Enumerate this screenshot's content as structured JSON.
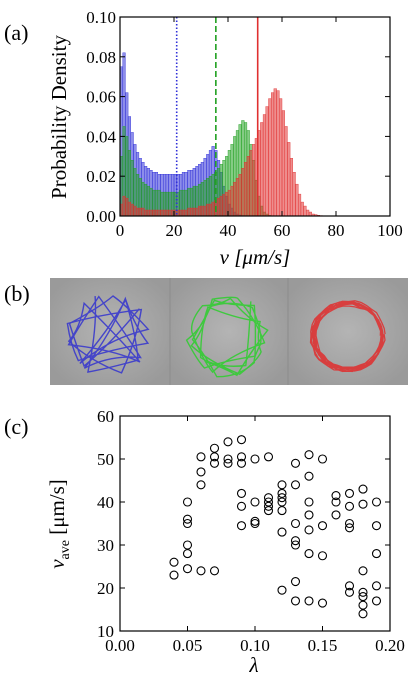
{
  "panels": {
    "a": {
      "label": "(a)"
    },
    "b": {
      "label": "(b)"
    },
    "c": {
      "label": "(c)"
    }
  },
  "colors": {
    "blue": "#3030d8",
    "green": "#20a020",
    "red": "#e03030",
    "frame_bg": "#a8a8a8",
    "trajectory_blue": "#3a3acc",
    "trajectory_green": "#33cc33",
    "trajectory_red": "#dd3333"
  },
  "chart_data": [
    {
      "panel": "(a)",
      "type": "bar",
      "xlabel": "v [μm/s]",
      "ylabel": "Probability Density",
      "xlim": [
        0,
        100
      ],
      "ylim": [
        0,
        0.1
      ],
      "xticks": [
        "0",
        "20",
        "40",
        "60",
        "80",
        "100"
      ],
      "yticks": [
        "0.00",
        "0.02",
        "0.04",
        "0.06",
        "0.08",
        "0.10"
      ],
      "series": [
        {
          "color": "blue",
          "x": [
            0.5,
            1.5,
            2.5,
            3.5,
            4.5,
            5.5,
            6.5,
            7.5,
            8.5,
            9.5,
            10.5,
            11.5,
            12.5,
            13.5,
            14.5,
            15.5,
            16.5,
            17.5,
            18.5,
            19.5,
            20.5,
            21.5,
            22.5,
            23.5,
            24.5,
            25.5,
            26.5,
            27.5,
            28.5,
            29.5,
            30.5,
            31.5,
            32.5,
            33.5,
            34.5,
            35.5,
            36.5,
            37.5,
            38.5,
            39.5,
            40.5,
            41.5,
            42.5,
            43.5,
            44.5,
            45.5
          ],
          "values": [
            0.075,
            0.082,
            0.062,
            0.05,
            0.042,
            0.036,
            0.032,
            0.029,
            0.027,
            0.025,
            0.024,
            0.023,
            0.022,
            0.022,
            0.021,
            0.021,
            0.021,
            0.021,
            0.021,
            0.021,
            0.021,
            0.021,
            0.021,
            0.022,
            0.022,
            0.023,
            0.023,
            0.024,
            0.025,
            0.026,
            0.027,
            0.029,
            0.031,
            0.033,
            0.035,
            0.033,
            0.028,
            0.022,
            0.015,
            0.01,
            0.006,
            0.004,
            0.002,
            0.001,
            0.0005,
            0.0002
          ]
        },
        {
          "color": "green",
          "x": [
            0.5,
            1.5,
            2.5,
            3.5,
            4.5,
            5.5,
            6.5,
            7.5,
            8.5,
            9.5,
            10.5,
            11.5,
            12.5,
            13.5,
            14.5,
            15.5,
            16.5,
            17.5,
            18.5,
            19.5,
            20.5,
            21.5,
            22.5,
            23.5,
            24.5,
            25.5,
            26.5,
            27.5,
            28.5,
            29.5,
            30.5,
            31.5,
            32.5,
            33.5,
            34.5,
            35.5,
            36.5,
            37.5,
            38.5,
            39.5,
            40.5,
            41.5,
            42.5,
            43.5,
            44.5,
            45.5,
            46.5,
            47.5,
            48.5,
            49.5,
            50.5,
            51.5,
            52.5,
            53.5,
            54.5,
            55.5
          ],
          "values": [
            0.03,
            0.045,
            0.04,
            0.033,
            0.028,
            0.024,
            0.021,
            0.019,
            0.017,
            0.016,
            0.015,
            0.014,
            0.013,
            0.013,
            0.013,
            0.012,
            0.012,
            0.012,
            0.012,
            0.012,
            0.012,
            0.012,
            0.013,
            0.013,
            0.013,
            0.014,
            0.014,
            0.015,
            0.015,
            0.016,
            0.017,
            0.018,
            0.019,
            0.02,
            0.021,
            0.022,
            0.024,
            0.026,
            0.028,
            0.03,
            0.033,
            0.036,
            0.04,
            0.043,
            0.046,
            0.048,
            0.047,
            0.043,
            0.036,
            0.028,
            0.018,
            0.01,
            0.005,
            0.002,
            0.001,
            0.0003
          ]
        },
        {
          "color": "red",
          "x": [
            0.5,
            1.5,
            2.5,
            3.5,
            4.5,
            5.5,
            6.5,
            7.5,
            8.5,
            9.5,
            10.5,
            11.5,
            12.5,
            13.5,
            14.5,
            15.5,
            16.5,
            17.5,
            18.5,
            19.5,
            20.5,
            21.5,
            22.5,
            23.5,
            24.5,
            25.5,
            26.5,
            27.5,
            28.5,
            29.5,
            30.5,
            31.5,
            32.5,
            33.5,
            34.5,
            35.5,
            36.5,
            37.5,
            38.5,
            39.5,
            40.5,
            41.5,
            42.5,
            43.5,
            44.5,
            45.5,
            46.5,
            47.5,
            48.5,
            49.5,
            50.5,
            51.5,
            52.5,
            53.5,
            54.5,
            55.5,
            56.5,
            57.5,
            58.5,
            59.5,
            60.5,
            61.5,
            62.5,
            63.5,
            64.5,
            65.5,
            66.5,
            67.5,
            68.5,
            69.5,
            70.5,
            71.5,
            72.5,
            73.5,
            74.5,
            75.5
          ],
          "values": [
            0.006,
            0.01,
            0.009,
            0.007,
            0.006,
            0.005,
            0.004,
            0.004,
            0.004,
            0.003,
            0.003,
            0.003,
            0.003,
            0.003,
            0.003,
            0.003,
            0.003,
            0.003,
            0.003,
            0.003,
            0.003,
            0.003,
            0.003,
            0.003,
            0.003,
            0.004,
            0.004,
            0.004,
            0.004,
            0.005,
            0.005,
            0.005,
            0.006,
            0.006,
            0.007,
            0.008,
            0.009,
            0.01,
            0.011,
            0.012,
            0.013,
            0.015,
            0.017,
            0.019,
            0.021,
            0.024,
            0.027,
            0.03,
            0.033,
            0.036,
            0.039,
            0.043,
            0.047,
            0.051,
            0.055,
            0.059,
            0.062,
            0.064,
            0.063,
            0.059,
            0.053,
            0.045,
            0.037,
            0.029,
            0.022,
            0.016,
            0.011,
            0.007,
            0.005,
            0.003,
            0.002,
            0.001,
            0.0007,
            0.0004,
            0.0002,
            0.0001
          ]
        }
      ],
      "vertical_lines": [
        {
          "x": 21,
          "color": "blue",
          "style": "dotted"
        },
        {
          "x": 35.5,
          "color": "green",
          "style": "dashed"
        },
        {
          "x": 51,
          "color": "red",
          "style": "solid"
        }
      ]
    },
    {
      "panel": "(c)",
      "type": "scatter",
      "xlabel": "λ",
      "ylabel": "v_ave [μm/s]",
      "xlim": [
        0,
        0.2
      ],
      "ylim": [
        10,
        60
      ],
      "xticks": [
        "0.00",
        "0.05",
        "0.10",
        "0.15",
        "0.20"
      ],
      "yticks": [
        "10",
        "20",
        "30",
        "40",
        "50",
        "60"
      ],
      "marker": "open-circle",
      "points": [
        [
          0.04,
          26
        ],
        [
          0.04,
          23
        ],
        [
          0.05,
          24.5
        ],
        [
          0.05,
          28
        ],
        [
          0.05,
          30
        ],
        [
          0.05,
          35
        ],
        [
          0.05,
          36
        ],
        [
          0.05,
          40
        ],
        [
          0.06,
          24
        ],
        [
          0.06,
          44
        ],
        [
          0.06,
          47
        ],
        [
          0.06,
          50.5
        ],
        [
          0.07,
          24
        ],
        [
          0.07,
          49
        ],
        [
          0.07,
          50.5
        ],
        [
          0.07,
          52.5
        ],
        [
          0.08,
          49
        ],
        [
          0.08,
          50
        ],
        [
          0.08,
          54
        ],
        [
          0.09,
          34.5
        ],
        [
          0.09,
          39
        ],
        [
          0.09,
          42
        ],
        [
          0.09,
          49
        ],
        [
          0.09,
          50.5
        ],
        [
          0.09,
          54.5
        ],
        [
          0.1,
          35
        ],
        [
          0.1,
          35.5
        ],
        [
          0.1,
          40
        ],
        [
          0.1,
          50
        ],
        [
          0.11,
          38
        ],
        [
          0.11,
          39
        ],
        [
          0.11,
          40
        ],
        [
          0.11,
          41
        ],
        [
          0.11,
          50.5
        ],
        [
          0.12,
          19.5
        ],
        [
          0.12,
          33
        ],
        [
          0.12,
          38
        ],
        [
          0.12,
          40
        ],
        [
          0.12,
          41
        ],
        [
          0.12,
          42
        ],
        [
          0.12,
          44
        ],
        [
          0.13,
          17
        ],
        [
          0.13,
          21.5
        ],
        [
          0.13,
          30
        ],
        [
          0.13,
          31
        ],
        [
          0.13,
          35
        ],
        [
          0.13,
          44
        ],
        [
          0.13,
          49
        ],
        [
          0.14,
          17
        ],
        [
          0.14,
          28
        ],
        [
          0.14,
          33.5
        ],
        [
          0.14,
          37
        ],
        [
          0.14,
          40
        ],
        [
          0.14,
          46
        ],
        [
          0.14,
          51
        ],
        [
          0.15,
          16.5
        ],
        [
          0.15,
          27.5
        ],
        [
          0.15,
          34.5
        ],
        [
          0.15,
          50
        ],
        [
          0.16,
          37
        ],
        [
          0.16,
          40
        ],
        [
          0.16,
          41.5
        ],
        [
          0.17,
          19
        ],
        [
          0.17,
          20.5
        ],
        [
          0.17,
          34
        ],
        [
          0.17,
          35
        ],
        [
          0.17,
          39
        ],
        [
          0.17,
          42
        ],
        [
          0.18,
          14
        ],
        [
          0.18,
          16
        ],
        [
          0.18,
          18
        ],
        [
          0.18,
          19
        ],
        [
          0.18,
          24
        ],
        [
          0.18,
          39.5
        ],
        [
          0.18,
          43
        ],
        [
          0.19,
          17
        ],
        [
          0.19,
          20.5
        ],
        [
          0.19,
          28
        ],
        [
          0.19,
          34.5
        ],
        [
          0.19,
          40
        ]
      ]
    }
  ]
}
